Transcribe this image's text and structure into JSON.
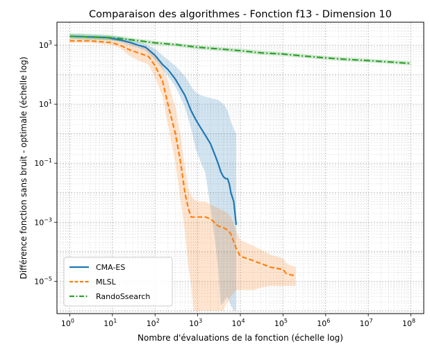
{
  "chart_data": {
    "type": "line",
    "title": "Comparaison des algorithmes - Fonction f13 - Dimension 10",
    "xlabel": "Nombre d'évaluations de la fonction (échelle log)",
    "ylabel": "Différence fonction sans bruit - optimale (échelle log)",
    "xscale": "log",
    "yscale": "log",
    "xlim": [
      0.5,
      200000000
    ],
    "ylim": [
      8e-07,
      6000
    ],
    "grid": true,
    "legend_position": "lower-left",
    "x_ticks": [
      {
        "value": 1,
        "base": "10",
        "exp": "0"
      },
      {
        "value": 10,
        "base": "10",
        "exp": "1"
      },
      {
        "value": 100,
        "base": "10",
        "exp": "2"
      },
      {
        "value": 1000,
        "base": "10",
        "exp": "3"
      },
      {
        "value": 10000,
        "base": "10",
        "exp": "4"
      },
      {
        "value": 100000,
        "base": "10",
        "exp": "5"
      },
      {
        "value": 1000000,
        "base": "10",
        "exp": "6"
      },
      {
        "value": 10000000,
        "base": "10",
        "exp": "7"
      },
      {
        "value": 100000000,
        "base": "10",
        "exp": "8"
      }
    ],
    "y_ticks": [
      {
        "value": 1e-05,
        "base": "10",
        "exp": "−5"
      },
      {
        "value": 0.001,
        "base": "10",
        "exp": "−3"
      },
      {
        "value": 0.1,
        "base": "10",
        "exp": "−1"
      },
      {
        "value": 10,
        "base": "10",
        "exp": "1"
      },
      {
        "value": 1000,
        "base": "10",
        "exp": "3"
      }
    ],
    "series": [
      {
        "name": "CMA-ES",
        "color": "#1f77b4",
        "style": "solid",
        "x": [
          1,
          3,
          8,
          15,
          25,
          40,
          60,
          100,
          150,
          200,
          300,
          500,
          700,
          900,
          1200,
          1500,
          2000,
          2500,
          3000,
          3500,
          4000,
          4500,
          5000,
          5500,
          6000,
          7000,
          8000
        ],
        "y": [
          2000,
          1900,
          1800,
          1500,
          1250,
          1000,
          850,
          450,
          220,
          150,
          70,
          20,
          6,
          3,
          1.5,
          0.9,
          0.45,
          0.2,
          0.1,
          0.05,
          0.035,
          0.03,
          0.03,
          0.02,
          0.01,
          0.005,
          0.00082
        ],
        "upper": [
          2400,
          2300,
          2150,
          1900,
          1600,
          1300,
          1100,
          750,
          450,
          320,
          200,
          90,
          40,
          25,
          20,
          18,
          16,
          15,
          14,
          12,
          10,
          8,
          6,
          4,
          2.5,
          1.5,
          1
        ],
        "lower": [
          1700,
          1600,
          1500,
          1250,
          1000,
          820,
          650,
          320,
          150,
          90,
          40,
          8,
          1.5,
          0.3,
          0.1,
          0.05,
          0.003,
          0.0003,
          3e-05,
          1.5e-06,
          2e-06,
          2.5e-06,
          3e-06,
          2e-06,
          1.5e-06,
          1e-06,
          1e-06
        ]
      },
      {
        "name": "MLSL",
        "color": "#ff7f0e",
        "style": "dashed",
        "x": [
          1,
          3,
          8,
          10,
          15,
          25,
          40,
          70,
          100,
          150,
          200,
          300,
          400,
          500,
          600,
          700,
          800,
          1000,
          1500,
          2000,
          3000,
          4000,
          5000,
          6000,
          8000,
          10000,
          20000,
          30000,
          50000,
          100000,
          120000,
          200000
        ],
        "y": [
          1400,
          1400,
          1250,
          1200,
          1000,
          700,
          550,
          420,
          200,
          60,
          10,
          1,
          0.1,
          0.01,
          0.003,
          0.0015,
          0.0015,
          0.0015,
          0.0015,
          0.0013,
          0.00075,
          0.00065,
          0.00055,
          0.0004,
          0.00013,
          7e-05,
          5e-05,
          4e-05,
          3e-05,
          2.5e-05,
          1.8e-05,
          1.5e-05
        ],
        "upper": [
          1700,
          1700,
          1650,
          1600,
          1500,
          1150,
          900,
          800,
          500,
          200,
          60,
          8,
          0.8,
          0.08,
          0.015,
          0.008,
          0.006,
          0.005,
          0.005,
          0.004,
          0.003,
          0.0025,
          0.002,
          0.0015,
          0.0005,
          0.00025,
          0.00016,
          0.00012,
          8e-05,
          6e-05,
          4e-05,
          3e-05
        ],
        "lower": [
          1200,
          1200,
          1050,
          1000,
          800,
          450,
          300,
          220,
          80,
          18,
          2,
          0.1,
          0.005,
          0.0005,
          3e-05,
          8e-06,
          1e-06,
          1e-06,
          1e-06,
          1e-06,
          1e-06,
          1e-06,
          2e-06,
          3e-06,
          5e-06,
          5e-06,
          5e-06,
          6e-06,
          7e-06,
          7e-06,
          7e-06,
          7e-06
        ]
      },
      {
        "name": "RandoSsearch",
        "color": "#2ca02c",
        "style": "dashdot",
        "x": [
          1,
          10,
          30,
          100,
          300,
          1000,
          3000,
          10000,
          30000,
          100000,
          300000,
          1000000,
          3000000,
          10000000,
          30000000,
          100000000
        ],
        "y": [
          2000,
          1800,
          1500,
          1200,
          1050,
          850,
          750,
          650,
          550,
          500,
          430,
          370,
          330,
          300,
          270,
          240
        ],
        "upper": [
          2600,
          2200,
          1750,
          1400,
          1200,
          1000,
          880,
          760,
          650,
          580,
          500,
          430,
          390,
          350,
          315,
          280
        ],
        "lower": [
          1600,
          1450,
          1250,
          1000,
          900,
          720,
          640,
          550,
          470,
          430,
          370,
          320,
          285,
          260,
          235,
          210
        ]
      }
    ]
  }
}
